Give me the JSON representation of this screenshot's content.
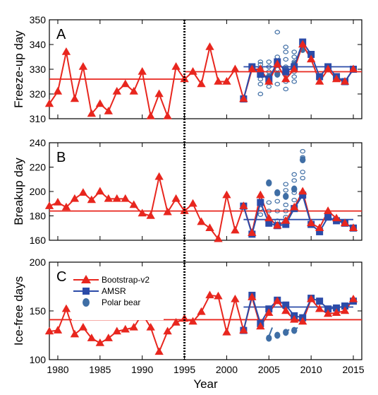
{
  "colors": {
    "bootstrap": "#e8261e",
    "amsr": "#2b4ba8",
    "polar": "#3f6ea5",
    "axis": "#000000"
  },
  "legend": {
    "bootstrap": "Bootstrap-v2",
    "amsr": "AMSR",
    "polar": "Polar bear"
  },
  "chart_data": {
    "type": "line",
    "x_label": "Year",
    "x_range": [
      1979,
      2016
    ],
    "x_ticks": [
      1980,
      1985,
      1990,
      1995,
      2000,
      2005,
      2010,
      2015
    ],
    "x_tick_labels": [
      "1980",
      "1985",
      "1990",
      "1995",
      "2000",
      "2005",
      "2010",
      "2015"
    ],
    "divider_year": 1995,
    "panels": [
      {
        "label": "A",
        "ylabel": "Freeze-up day",
        "ylim": [
          310,
          350
        ],
        "yticks": [
          310,
          320,
          330,
          340,
          350
        ],
        "ytick_labels": [
          "310",
          "320",
          "330",
          "340",
          "350"
        ],
        "bootstrap": {
          "x": [
            1979,
            1980,
            1981,
            1982,
            1983,
            1984,
            1985,
            1986,
            1987,
            1988,
            1989,
            1990,
            1991,
            1992,
            1993,
            1994,
            1995,
            1996,
            1997,
            1998,
            1999,
            2000,
            2001,
            2002,
            2003,
            2004,
            2005,
            2006,
            2007,
            2008,
            2009,
            2010,
            2011,
            2012,
            2013,
            2014,
            2015
          ],
          "y": [
            316,
            321,
            337,
            318,
            331,
            312,
            316,
            313,
            321,
            324,
            321,
            329,
            311,
            320,
            311,
            331,
            326,
            329,
            324,
            339,
            325,
            325,
            330,
            318,
            330,
            330,
            325,
            332,
            326,
            330,
            340,
            334,
            325,
            330,
            326,
            325,
            330
          ]
        },
        "amsr": {
          "x": [
            2002,
            2003,
            2004,
            2005,
            2006,
            2007,
            2008,
            2009,
            2010,
            2011,
            2012,
            2013,
            2014,
            2015
          ],
          "y": [
            318,
            331,
            328,
            326,
            333,
            329,
            331,
            341,
            336,
            327,
            331,
            327,
            325,
            330
          ]
        },
        "bootstrap_mean_pre": 326,
        "bootstrap_mean_post": 329,
        "amsr_mean": 331,
        "polar_open": [
          {
            "x": 2004,
            "y": 320
          },
          {
            "x": 2004,
            "y": 324
          },
          {
            "x": 2004,
            "y": 326
          },
          {
            "x": 2004,
            "y": 328
          },
          {
            "x": 2004,
            "y": 332
          },
          {
            "x": 2004,
            "y": 333
          },
          {
            "x": 2005,
            "y": 323
          },
          {
            "x": 2005,
            "y": 326
          },
          {
            "x": 2005,
            "y": 329
          },
          {
            "x": 2005,
            "y": 331
          },
          {
            "x": 2005,
            "y": 333
          },
          {
            "x": 2006,
            "y": 324
          },
          {
            "x": 2006,
            "y": 330
          },
          {
            "x": 2006,
            "y": 335
          },
          {
            "x": 2006,
            "y": 345
          },
          {
            "x": 2007,
            "y": 322
          },
          {
            "x": 2007,
            "y": 325
          },
          {
            "x": 2007,
            "y": 328
          },
          {
            "x": 2007,
            "y": 331
          },
          {
            "x": 2007,
            "y": 334
          },
          {
            "x": 2007,
            "y": 337
          },
          {
            "x": 2007,
            "y": 339
          },
          {
            "x": 2008,
            "y": 325
          },
          {
            "x": 2008,
            "y": 327
          },
          {
            "x": 2008,
            "y": 329
          },
          {
            "x": 2008,
            "y": 331
          },
          {
            "x": 2008,
            "y": 333
          },
          {
            "x": 2008,
            "y": 335
          },
          {
            "x": 2008,
            "y": 337
          }
        ],
        "polar_filled": [
          {
            "x": 2004,
            "y": 330
          },
          {
            "x": 2005,
            "y": 327
          },
          {
            "x": 2006,
            "y": 328
          },
          {
            "x": 2007,
            "y": 330
          },
          {
            "x": 2008,
            "y": 332
          },
          {
            "x": 2009,
            "y": 338
          }
        ]
      },
      {
        "label": "B",
        "ylabel": "Breakup day",
        "ylim": [
          160,
          240
        ],
        "yticks": [
          160,
          180,
          200,
          220,
          240
        ],
        "ytick_labels": [
          "160",
          "180",
          "200",
          "220",
          "240"
        ],
        "bootstrap": {
          "x": [
            1979,
            1980,
            1981,
            1982,
            1983,
            1984,
            1985,
            1986,
            1987,
            1988,
            1989,
            1990,
            1991,
            1992,
            1993,
            1994,
            1995,
            1996,
            1997,
            1998,
            1999,
            2000,
            2001,
            2002,
            2003,
            2004,
            2005,
            2006,
            2007,
            2008,
            2009,
            2010,
            2011,
            2012,
            2013,
            2014,
            2015
          ],
          "y": [
            188,
            191,
            187,
            194,
            199,
            193,
            200,
            194,
            194,
            194,
            189,
            182,
            180,
            212,
            183,
            194,
            184,
            190,
            175,
            170,
            161,
            197,
            168,
            188,
            166,
            197,
            178,
            172,
            176,
            187,
            200,
            174,
            170,
            184,
            178,
            174,
            170
          ]
        },
        "amsr": {
          "x": [
            2002,
            2003,
            2004,
            2005,
            2006,
            2007,
            2008,
            2009,
            2010,
            2011,
            2012,
            2013,
            2014,
            2015
          ],
          "y": [
            188,
            165,
            191,
            174,
            172,
            173,
            186,
            197,
            173,
            167,
            179,
            176,
            174,
            170
          ]
        },
        "bootstrap_mean_pre": 184,
        "bootstrap_mean_post": 184,
        "amsr_mean": 177,
        "polar_open": [
          {
            "x": 2004,
            "y": 181
          },
          {
            "x": 2004,
            "y": 186
          },
          {
            "x": 2004,
            "y": 192
          },
          {
            "x": 2005,
            "y": 178
          },
          {
            "x": 2005,
            "y": 184
          },
          {
            "x": 2005,
            "y": 191
          },
          {
            "x": 2006,
            "y": 176
          },
          {
            "x": 2006,
            "y": 184
          },
          {
            "x": 2006,
            "y": 192
          },
          {
            "x": 2006,
            "y": 198
          },
          {
            "x": 2007,
            "y": 179
          },
          {
            "x": 2007,
            "y": 184
          },
          {
            "x": 2007,
            "y": 189
          },
          {
            "x": 2007,
            "y": 196
          },
          {
            "x": 2007,
            "y": 201
          },
          {
            "x": 2007,
            "y": 206
          },
          {
            "x": 2008,
            "y": 185
          },
          {
            "x": 2008,
            "y": 193
          },
          {
            "x": 2008,
            "y": 199
          },
          {
            "x": 2008,
            "y": 209
          },
          {
            "x": 2008,
            "y": 214
          },
          {
            "x": 2009,
            "y": 211
          },
          {
            "x": 2009,
            "y": 216
          },
          {
            "x": 2009,
            "y": 228
          },
          {
            "x": 2009,
            "y": 233
          }
        ],
        "polar_filled": [
          {
            "x": 2005,
            "y": 207
          },
          {
            "x": 2006,
            "y": 199
          },
          {
            "x": 2007,
            "y": 196
          },
          {
            "x": 2008,
            "y": 202
          },
          {
            "x": 2009,
            "y": 226
          }
        ]
      },
      {
        "label": "C",
        "ylabel": "Ice-free days",
        "ylim": [
          100,
          200
        ],
        "yticks": [
          100,
          150,
          200
        ],
        "ytick_labels": [
          "100",
          "150",
          "200"
        ],
        "bootstrap": {
          "x": [
            1979,
            1980,
            1981,
            1982,
            1983,
            1984,
            1985,
            1986,
            1987,
            1988,
            1989,
            1990,
            1991,
            1992,
            1993,
            1994,
            1995,
            1996,
            1997,
            1998,
            1999,
            2000,
            2001,
            2002,
            2003,
            2004,
            2005,
            2006,
            2007,
            2008,
            2009,
            2010,
            2011,
            2012,
            2013,
            2014,
            2015
          ],
          "y": [
            129,
            130,
            152,
            126,
            133,
            122,
            117,
            122,
            129,
            131,
            133,
            147,
            133,
            108,
            129,
            138,
            142,
            139,
            149,
            166,
            165,
            128,
            162,
            130,
            164,
            134,
            148,
            160,
            150,
            141,
            139,
            162,
            152,
            147,
            148,
            150,
            162
          ]
        },
        "amsr": {
          "x": [
            2002,
            2003,
            2004,
            2005,
            2006,
            2007,
            2008,
            2009,
            2010,
            2011,
            2012,
            2013,
            2014,
            2015
          ],
          "y": [
            130,
            166,
            137,
            152,
            161,
            156,
            145,
            143,
            163,
            160,
            152,
            153,
            155,
            160
          ]
        },
        "bootstrap_mean_pre": 141,
        "bootstrap_mean_post": 141,
        "amsr_mean": 154,
        "polar_open": [],
        "polar_filled": [
          {
            "x": 2005,
            "y": 122
          },
          {
            "x": 2006,
            "y": 125
          },
          {
            "x": 2007,
            "y": 128
          },
          {
            "x": 2008,
            "y": 130
          }
        ],
        "polar_segments": [
          {
            "x1": 2005,
            "y1": 124,
            "x2": 2005.4,
            "y2": 133
          },
          {
            "x1": 2007,
            "y1": 128,
            "x2": 2007.4,
            "y2": 131
          },
          {
            "x1": 2008,
            "y1": 130,
            "x2": 2008.4,
            "y2": 133
          }
        ]
      }
    ]
  }
}
